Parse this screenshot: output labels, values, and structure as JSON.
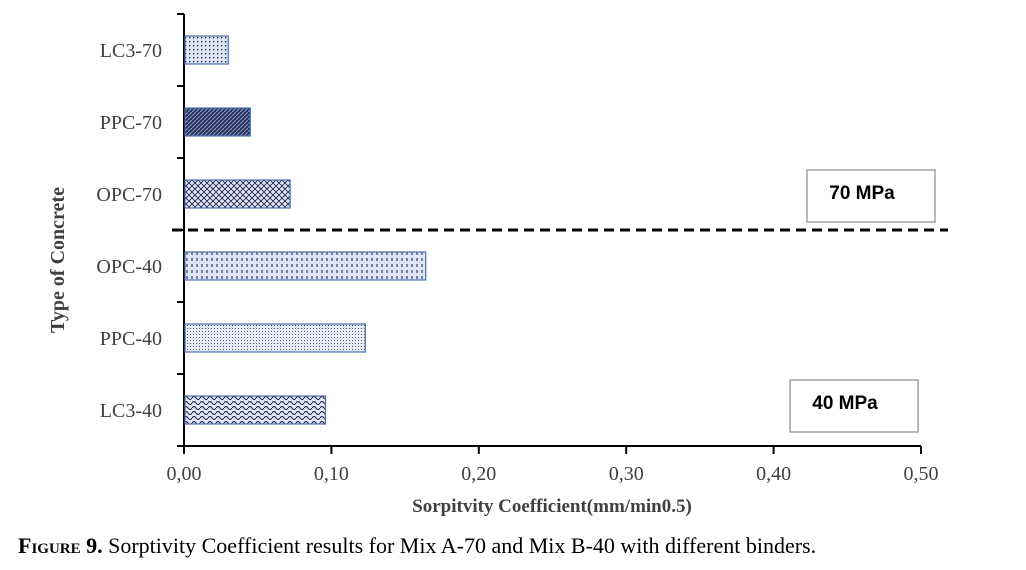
{
  "chart_data": {
    "type": "bar",
    "orientation": "horizontal",
    "categories": [
      "LC3-70",
      "PPC-70",
      "OPC-70",
      "OPC-40",
      "PPC-40",
      "LC3-40"
    ],
    "values": [
      0.03,
      0.045,
      0.072,
      0.164,
      0.123,
      0.096
    ],
    "xlabel": "Sorpitvity Coefficient(mm/min0.5)",
    "ylabel": "Type of Concrete",
    "xlim": [
      0,
      0.5
    ],
    "xticks": [
      "0,00",
      "0,10",
      "0,20",
      "0,30",
      "0,40",
      "0,50"
    ],
    "grid": false,
    "separator": "dashed line between OPC-70 and OPC-40",
    "annotations": [
      "70 MPa",
      "40 MPa"
    ],
    "bar_patterns": [
      "dots",
      "diagonal-dark",
      "crosshatch",
      "dashes",
      "fine-dots",
      "waves"
    ],
    "colors": {
      "bar_fill": "#dce6f5",
      "bar_edge": "#4a6fb5",
      "pattern": "#1a1a40",
      "dark_fill": "#2a3560"
    }
  },
  "caption": {
    "label": "Figure 9.",
    "text": " Sorptivity Coefficient results for Mix A-70 and Mix B-40 with different binders."
  }
}
